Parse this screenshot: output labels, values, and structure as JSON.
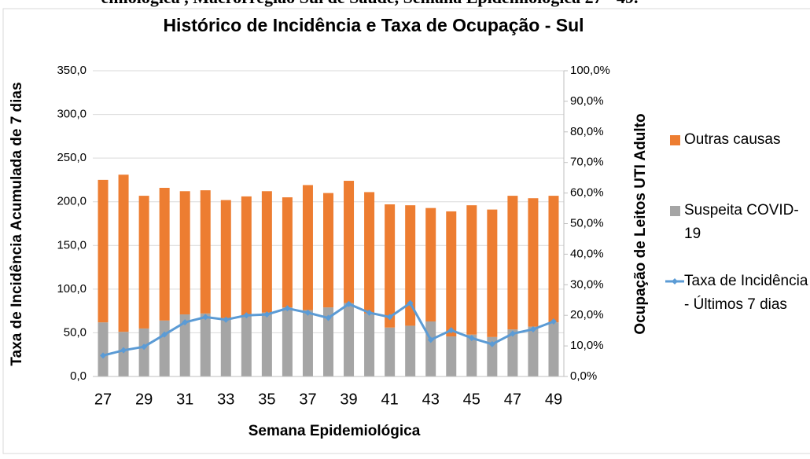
{
  "chart_data": {
    "type": "bar",
    "page_heading": "emiológica , Macrorregião Sul de Saúde, Semana Epidemiológica 27 - 49.",
    "title": "Histórico de Incidência e Taxa de Ocupação - Sul",
    "xlabel": "Semana Epidemiológica",
    "ylabel": "Taxa de Incidência  Acumulada de 7 dias",
    "y2label": "Ocupação de Leitos UTI Adulto",
    "categories": [
      "27",
      null,
      "29",
      null,
      "31",
      null,
      "33",
      null,
      "35",
      null,
      "37",
      null,
      "39",
      null,
      "41",
      null,
      "43",
      null,
      "45",
      null,
      "47",
      null,
      "49"
    ],
    "series": [
      {
        "name": "Outras causas",
        "color": "#ed7d31",
        "axis": "y2",
        "values": [
          46.6,
          51.4,
          43.4,
          43.4,
          40.3,
          40.3,
          38.6,
          38.9,
          39.7,
          36.0,
          40.9,
          37.4,
          40.0,
          39.7,
          40.3,
          39.4,
          37.1,
          40.9,
          42.3,
          41.7,
          43.7,
          42.0,
          41.4
        ]
      },
      {
        "name": "Suspeita COVID-19",
        "color": "#a5a5a5",
        "axis": "y2",
        "values": [
          17.7,
          14.6,
          15.7,
          18.3,
          20.3,
          20.6,
          19.1,
          20.0,
          20.9,
          22.6,
          21.7,
          22.6,
          24.0,
          20.6,
          16.0,
          16.6,
          18.0,
          13.1,
          13.7,
          12.9,
          15.4,
          16.3,
          17.7
        ]
      },
      {
        "name": "Taxa de Incidência - Últimos 7 dias",
        "color": "#5b9bd5",
        "type": "line",
        "values": [
          24,
          30,
          34,
          48,
          62,
          68,
          65,
          70,
          71,
          78,
          73,
          67,
          83,
          73,
          68,
          84,
          42,
          53,
          44,
          37,
          49,
          54,
          63
        ]
      }
    ],
    "ylim": [
      0,
      350
    ],
    "yticks": [
      {
        "value": 0,
        "label": "0,0"
      },
      {
        "value": 50,
        "label": "50,0"
      },
      {
        "value": 100,
        "label": "100,0"
      },
      {
        "value": 150,
        "label": "150,0"
      },
      {
        "value": 200,
        "label": "200,0"
      },
      {
        "value": 250,
        "label": "250,0"
      },
      {
        "value": 300,
        "label": "300,0"
      },
      {
        "value": 350,
        "label": "350,0"
      }
    ],
    "y2lim": [
      0,
      100
    ],
    "y2ticks": [
      {
        "value": 0,
        "label": "0,0%"
      },
      {
        "value": 10,
        "label": "10,0%"
      },
      {
        "value": 20,
        "label": "20,0%"
      },
      {
        "value": 30,
        "label": "30,0%"
      },
      {
        "value": 40,
        "label": "40,0%"
      },
      {
        "value": 50,
        "label": "50,0%"
      },
      {
        "value": 60,
        "label": "60,0%"
      },
      {
        "value": 70,
        "label": "70,0%"
      },
      {
        "value": 80,
        "label": "80,0%"
      },
      {
        "value": 90,
        "label": "90,0%"
      },
      {
        "value": 100,
        "label": "100,0%"
      }
    ],
    "grid": true,
    "legend": "right"
  }
}
